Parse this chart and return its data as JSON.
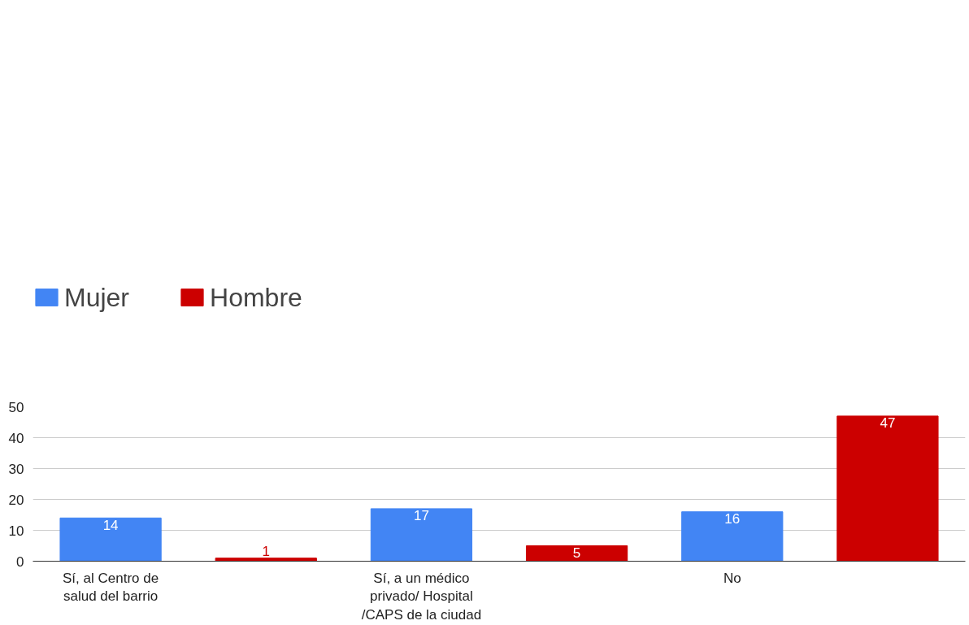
{
  "chart_data": {
    "type": "bar",
    "stacked": true,
    "categories": [
      "Sí, al Centro de salud del barrio",
      null,
      "Sí, a un médico privado/ Hospital /CAPS de la ciudad",
      null,
      "No",
      null
    ],
    "series": [
      {
        "name": "Mujer",
        "color": "#4285f4",
        "values": [
          14,
          null,
          17,
          null,
          16,
          null
        ]
      },
      {
        "name": "Hombre",
        "color": "#cc0000",
        "values": [
          null,
          1,
          null,
          5,
          null,
          47
        ]
      }
    ],
    "ylim": [
      0,
      50
    ],
    "yticks": [
      0,
      10,
      20,
      30,
      40,
      50
    ],
    "grid": "y",
    "legend": "top left",
    "data_labels": true
  }
}
